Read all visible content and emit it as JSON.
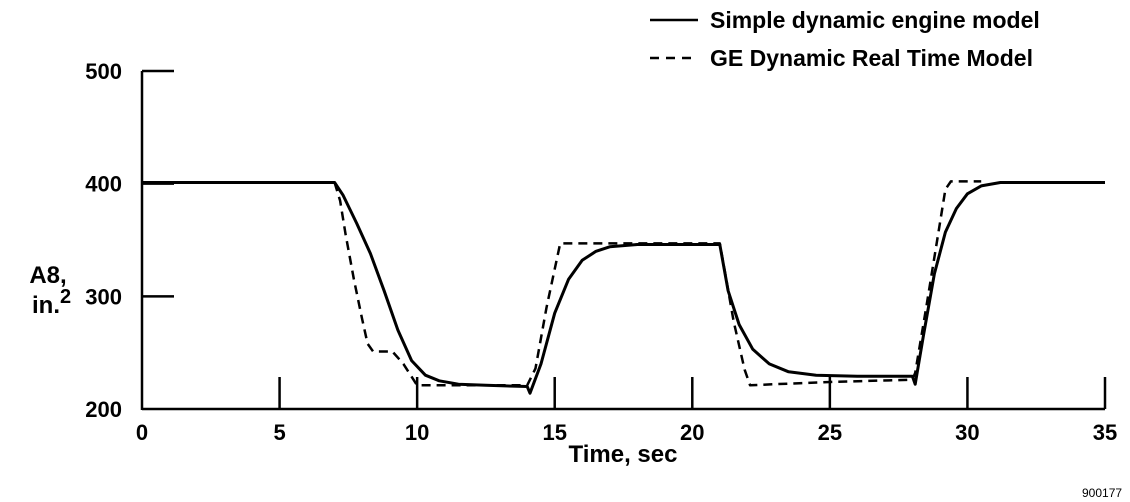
{
  "chart_data": {
    "type": "line",
    "xlabel": "Time, sec",
    "ylabel_line1": "A8,",
    "ylabel_line2": "in.",
    "ylabel_superscript": "2",
    "xlim": [
      0,
      35
    ],
    "ylim": [
      200,
      500
    ],
    "xticks": [
      0,
      5,
      10,
      15,
      20,
      25,
      30,
      35
    ],
    "yticks": [
      200,
      300,
      400,
      500
    ],
    "grid": false,
    "legend_position": "top-right",
    "figure_id": "900177",
    "series": [
      {
        "name": "Simple dynamic engine model",
        "style": "solid",
        "color": "#000000",
        "points": [
          [
            0,
            401
          ],
          [
            7,
            401
          ],
          [
            7.3,
            390
          ],
          [
            7.8,
            365
          ],
          [
            8.3,
            338
          ],
          [
            8.8,
            305
          ],
          [
            9.3,
            270
          ],
          [
            9.8,
            243
          ],
          [
            10.3,
            230
          ],
          [
            10.8,
            225
          ],
          [
            11.5,
            222
          ],
          [
            12.5,
            221
          ],
          [
            14,
            220
          ],
          [
            14.1,
            214
          ],
          [
            14.5,
            240
          ],
          [
            15,
            285
          ],
          [
            15.5,
            315
          ],
          [
            16,
            332
          ],
          [
            16.5,
            340
          ],
          [
            17,
            344
          ],
          [
            18,
            346
          ],
          [
            21,
            346
          ],
          [
            21.3,
            305
          ],
          [
            21.7,
            275
          ],
          [
            22.2,
            253
          ],
          [
            22.8,
            240
          ],
          [
            23.5,
            233
          ],
          [
            24.5,
            230
          ],
          [
            26,
            229
          ],
          [
            28,
            229
          ],
          [
            28.1,
            222
          ],
          [
            28.4,
            265
          ],
          [
            28.8,
            320
          ],
          [
            29.2,
            357
          ],
          [
            29.6,
            378
          ],
          [
            30,
            391
          ],
          [
            30.5,
            398
          ],
          [
            31.2,
            401
          ],
          [
            35,
            401
          ]
        ]
      },
      {
        "name": "GE Dynamic Real Time Model",
        "style": "dashed",
        "color": "#000000",
        "points": [
          [
            7,
            401
          ],
          [
            7.2,
            385
          ],
          [
            7.4,
            355
          ],
          [
            7.7,
            315
          ],
          [
            8,
            280
          ],
          [
            8.2,
            258
          ],
          [
            8.4,
            251
          ],
          [
            9.1,
            251
          ],
          [
            9.5,
            240
          ],
          [
            10,
            221
          ],
          [
            11,
            221
          ],
          [
            14,
            221
          ],
          [
            14.3,
            236
          ],
          [
            14.7,
            290
          ],
          [
            15.2,
            347
          ],
          [
            21,
            347
          ],
          [
            21.2,
            320
          ],
          [
            21.5,
            278
          ],
          [
            21.9,
            235
          ],
          [
            22.1,
            221
          ],
          [
            23,
            222
          ],
          [
            25,
            224
          ],
          [
            28,
            226
          ],
          [
            28.1,
            232
          ],
          [
            28.5,
            290
          ],
          [
            28.9,
            350
          ],
          [
            29.2,
            395
          ],
          [
            29.4,
            402
          ],
          [
            30.5,
            402
          ]
        ]
      }
    ]
  }
}
